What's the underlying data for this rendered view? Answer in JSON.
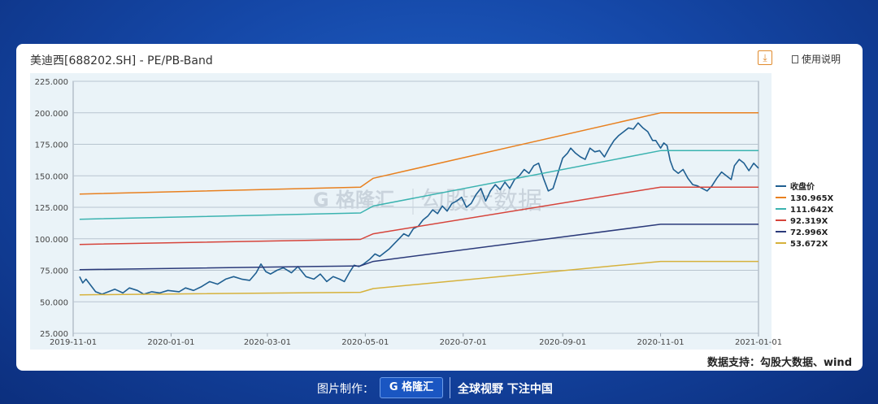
{
  "card": {
    "title": "美迪西[688202.SH] - PE/PB-Band",
    "download_icon": "download-icon",
    "usage_label": "使用说明",
    "source_note": "数据支持：勾股大数据、wind"
  },
  "watermark": {
    "logo_text": "G 格隆汇",
    "text": "勾股大数据"
  },
  "footer": {
    "label": "图片制作：",
    "logo_text": "G 格隆汇",
    "slogan": "全球视野 下注中国"
  },
  "colors": {
    "price": "#1f5f91",
    "band1": "#e8801f",
    "band2": "#3bb3b0",
    "band3": "#d6443b",
    "band4": "#2b3a7a",
    "band5": "#d6b23c",
    "plot_bg": "#eaf3f8",
    "grid": "#b8c4cf"
  },
  "chart_data": {
    "type": "line",
    "title": "美迪西[688202.SH] - PE/PB-Band",
    "xlabel": "",
    "ylabel": "",
    "ylim": [
      25,
      225
    ],
    "yticks": [
      "25.000",
      "50.000",
      "75.000",
      "100.000",
      "125.000",
      "150.000",
      "175.000",
      "200.000",
      "225.000"
    ],
    "xticks": [
      "2019-11-01",
      "2020-01-01",
      "2020-03-01",
      "2020-05-01",
      "2020-07-01",
      "2020-09-01",
      "2020-11-01",
      "2021-01-01"
    ],
    "xrange": [
      "2019-11-01",
      "2021-01-01"
    ],
    "grid": "horizontal",
    "legend_position": "right",
    "series": [
      {
        "name": "收盘价",
        "points": [
          [
            "2019-11-05",
            70
          ],
          [
            "2019-11-07",
            65
          ],
          [
            "2019-11-09",
            68
          ],
          [
            "2019-11-12",
            63
          ],
          [
            "2019-11-15",
            58
          ],
          [
            "2019-11-19",
            56
          ],
          [
            "2019-11-23",
            58
          ],
          [
            "2019-11-27",
            60
          ],
          [
            "2019-12-02",
            57
          ],
          [
            "2019-12-06",
            61
          ],
          [
            "2019-12-11",
            59
          ],
          [
            "2019-12-15",
            56
          ],
          [
            "2019-12-20",
            58
          ],
          [
            "2019-12-25",
            57
          ],
          [
            "2019-12-30",
            59
          ],
          [
            "2020-01-06",
            58
          ],
          [
            "2020-01-10",
            61
          ],
          [
            "2020-01-15",
            59
          ],
          [
            "2020-01-20",
            62
          ],
          [
            "2020-01-25",
            66
          ],
          [
            "2020-01-30",
            64
          ],
          [
            "2020-02-04",
            68
          ],
          [
            "2020-02-09",
            70
          ],
          [
            "2020-02-14",
            68
          ],
          [
            "2020-02-19",
            67
          ],
          [
            "2020-02-23",
            73
          ],
          [
            "2020-02-26",
            80
          ],
          [
            "2020-02-29",
            74
          ],
          [
            "2020-03-03",
            72
          ],
          [
            "2020-03-07",
            75
          ],
          [
            "2020-03-11",
            77
          ],
          [
            "2020-03-16",
            73
          ],
          [
            "2020-03-20",
            78
          ],
          [
            "2020-03-25",
            70
          ],
          [
            "2020-03-30",
            68
          ],
          [
            "2020-04-03",
            72
          ],
          [
            "2020-04-07",
            66
          ],
          [
            "2020-04-11",
            70
          ],
          [
            "2020-04-15",
            68
          ],
          [
            "2020-04-18",
            66
          ],
          [
            "2020-04-21",
            73
          ],
          [
            "2020-04-24",
            79
          ],
          [
            "2020-04-27",
            78
          ],
          [
            "2020-04-30",
            80
          ],
          [
            "2020-05-04",
            84
          ],
          [
            "2020-05-07",
            88
          ],
          [
            "2020-05-10",
            86
          ],
          [
            "2020-05-13",
            89
          ],
          [
            "2020-05-16",
            92
          ],
          [
            "2020-05-19",
            96
          ],
          [
            "2020-05-22",
            100
          ],
          [
            "2020-05-25",
            104
          ],
          [
            "2020-05-28",
            102
          ],
          [
            "2020-05-31",
            108
          ],
          [
            "2020-06-03",
            110
          ],
          [
            "2020-06-06",
            115
          ],
          [
            "2020-06-09",
            118
          ],
          [
            "2020-06-12",
            123
          ],
          [
            "2020-06-15",
            120
          ],
          [
            "2020-06-18",
            126
          ],
          [
            "2020-06-21",
            122
          ],
          [
            "2020-06-24",
            128
          ],
          [
            "2020-06-27",
            130
          ],
          [
            "2020-06-30",
            133
          ],
          [
            "2020-07-03",
            125
          ],
          [
            "2020-07-06",
            128
          ],
          [
            "2020-07-09",
            135
          ],
          [
            "2020-07-12",
            140
          ],
          [
            "2020-07-15",
            130
          ],
          [
            "2020-07-18",
            138
          ],
          [
            "2020-07-21",
            143
          ],
          [
            "2020-07-24",
            139
          ],
          [
            "2020-07-27",
            145
          ],
          [
            "2020-07-30",
            140
          ],
          [
            "2020-08-02",
            147
          ],
          [
            "2020-08-05",
            150
          ],
          [
            "2020-08-08",
            155
          ],
          [
            "2020-08-11",
            152
          ],
          [
            "2020-08-14",
            158
          ],
          [
            "2020-08-17",
            160
          ],
          [
            "2020-08-20",
            148
          ],
          [
            "2020-08-23",
            138
          ],
          [
            "2020-08-26",
            140
          ],
          [
            "2020-08-29",
            152
          ],
          [
            "2020-09-01",
            164
          ],
          [
            "2020-09-04",
            168
          ],
          [
            "2020-09-06",
            172
          ],
          [
            "2020-09-09",
            168
          ],
          [
            "2020-09-12",
            165
          ],
          [
            "2020-09-15",
            163
          ],
          [
            "2020-09-18",
            172
          ],
          [
            "2020-09-21",
            169
          ],
          [
            "2020-09-24",
            170
          ],
          [
            "2020-09-27",
            165
          ],
          [
            "2020-09-30",
            172
          ],
          [
            "2020-10-03",
            178
          ],
          [
            "2020-10-06",
            182
          ],
          [
            "2020-10-09",
            185
          ],
          [
            "2020-10-12",
            188
          ],
          [
            "2020-10-15",
            187
          ],
          [
            "2020-10-18",
            192
          ],
          [
            "2020-10-21",
            188
          ],
          [
            "2020-10-24",
            185
          ],
          [
            "2020-10-27",
            178
          ],
          [
            "2020-10-29",
            178
          ],
          [
            "2020-11-01",
            172
          ],
          [
            "2020-11-03",
            176
          ],
          [
            "2020-11-05",
            174
          ],
          [
            "2020-11-07",
            162
          ],
          [
            "2020-11-09",
            155
          ],
          [
            "2020-11-12",
            152
          ],
          [
            "2020-11-15",
            155
          ],
          [
            "2020-11-18",
            148
          ],
          [
            "2020-11-21",
            143
          ],
          [
            "2020-11-24",
            142
          ],
          [
            "2020-11-27",
            140
          ],
          [
            "2020-11-30",
            138
          ],
          [
            "2020-12-03",
            142
          ],
          [
            "2020-12-06",
            148
          ],
          [
            "2020-12-09",
            153
          ],
          [
            "2020-12-12",
            150
          ],
          [
            "2020-12-15",
            147
          ],
          [
            "2020-12-17",
            158
          ],
          [
            "2020-12-20",
            163
          ],
          [
            "2020-12-23",
            160
          ],
          [
            "2020-12-26",
            154
          ],
          [
            "2020-12-29",
            160
          ],
          [
            "2021-01-01",
            156
          ]
        ]
      },
      {
        "name": "130.965X",
        "points": [
          [
            "2019-11-05",
            135.5
          ],
          [
            "2020-04-28",
            141
          ],
          [
            "2020-05-06",
            148
          ],
          [
            "2020-11-01",
            200
          ],
          [
            "2021-01-01",
            200
          ]
        ]
      },
      {
        "name": "111.642X",
        "points": [
          [
            "2019-11-05",
            115.5
          ],
          [
            "2020-04-28",
            120.5
          ],
          [
            "2020-05-06",
            126
          ],
          [
            "2020-11-01",
            170
          ],
          [
            "2021-01-01",
            170
          ]
        ]
      },
      {
        "name": "92.319X",
        "points": [
          [
            "2019-11-05",
            95.5
          ],
          [
            "2020-04-28",
            99.5
          ],
          [
            "2020-05-06",
            104
          ],
          [
            "2020-11-01",
            141
          ],
          [
            "2021-01-01",
            141
          ]
        ]
      },
      {
        "name": "72.996X",
        "points": [
          [
            "2019-11-05",
            75.5
          ],
          [
            "2020-04-28",
            78.5
          ],
          [
            "2020-05-06",
            82
          ],
          [
            "2020-11-01",
            111.5
          ],
          [
            "2021-01-01",
            111.5
          ]
        ]
      },
      {
        "name": "53.672X",
        "points": [
          [
            "2019-11-05",
            55.5
          ],
          [
            "2020-04-28",
            57.5
          ],
          [
            "2020-05-06",
            60.5
          ],
          [
            "2020-11-01",
            82
          ],
          [
            "2021-01-01",
            82
          ]
        ]
      }
    ]
  }
}
